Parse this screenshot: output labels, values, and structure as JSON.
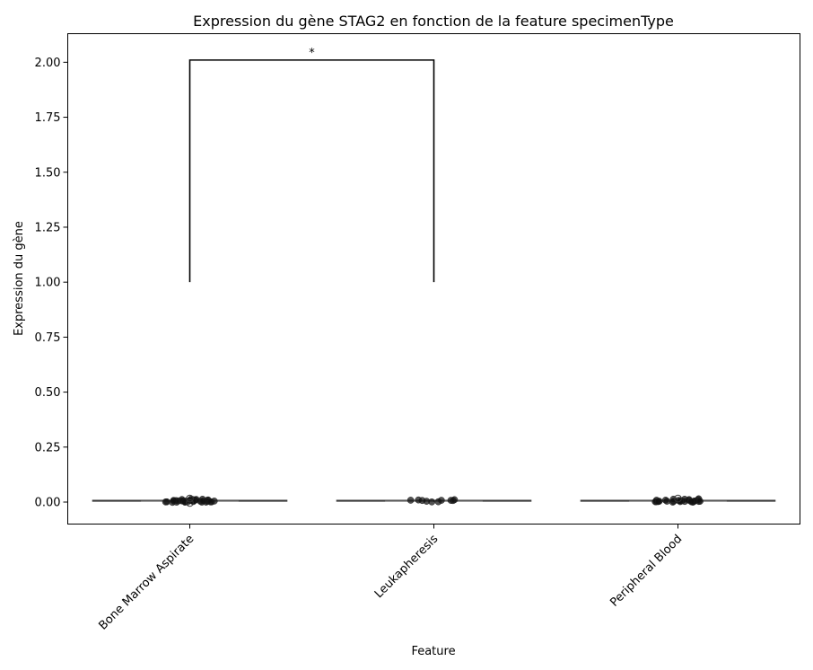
{
  "chart_data": {
    "type": "box",
    "title": "Expression du gène STAG2 en fonction de la feature specimenType",
    "xlabel": "Feature",
    "ylabel": "Expression du gène",
    "categories": [
      "Bone Marrow Aspirate",
      "Leukapheresis",
      "Peripheral Blood"
    ],
    "ylim": [
      -0.1,
      2.13
    ],
    "yticks": [
      0.0,
      0.25,
      0.5,
      0.75,
      1.0,
      1.25,
      1.5,
      1.75,
      2.0
    ],
    "ytick_labels": [
      "0.00",
      "0.25",
      "0.50",
      "0.75",
      "1.00",
      "1.25",
      "1.50",
      "1.75",
      "2.00"
    ],
    "grid": false,
    "boxes": [
      {
        "category": "Bone Marrow Aspirate",
        "whisker_low": 0.0,
        "q1": 0.004,
        "median": 0.006,
        "q3": 0.008,
        "whisker_high": 0.012
      },
      {
        "category": "Leukapheresis",
        "whisker_low": 0.001,
        "q1": 0.004,
        "median": 0.006,
        "q3": 0.008,
        "whisker_high": 0.01
      },
      {
        "category": "Peripheral Blood",
        "whisker_low": 0.0,
        "q1": 0.004,
        "median": 0.006,
        "q3": 0.008,
        "whisker_high": 0.012
      }
    ],
    "points": [
      {
        "category": "Bone Marrow Aspirate",
        "values": [
          0.006,
          0.004,
          0.008,
          0.005,
          0.007,
          0.003,
          0.009,
          0.006,
          0.002,
          0.01,
          0.005,
          0.007,
          0.004,
          0.006,
          0.008,
          0.003,
          0.006,
          0.005,
          0.007,
          0.004,
          0.009,
          0.006,
          0.005,
          0.007,
          0.003,
          0.008,
          0.006,
          0.004,
          0.005,
          0.007,
          0.006,
          0.002,
          0.008,
          0.005,
          0.004
        ],
        "outliers": [
          0.016,
          -0.004
        ]
      },
      {
        "category": "Leukapheresis",
        "values": [
          0.009,
          0.005,
          0.004,
          0.006,
          0.01,
          0.007,
          0.003,
          0.008,
          0.006,
          0.005
        ],
        "outliers": []
      },
      {
        "category": "Peripheral Blood",
        "values": [
          0.006,
          0.004,
          0.008,
          0.005,
          0.007,
          0.003,
          0.009,
          0.006,
          0.01,
          0.005,
          0.007,
          0.004,
          0.006,
          0.008,
          0.003,
          0.006,
          0.005,
          0.007,
          0.004,
          0.009,
          0.006,
          0.005,
          0.007,
          0.008,
          0.006,
          0.004,
          0.005,
          0.007
        ],
        "outliers": [
          0.016
        ]
      }
    ],
    "annotations": [
      {
        "type": "significance-bracket",
        "from": "Bone Marrow Aspirate",
        "to": "Leukapheresis",
        "y_bottom": 1.0,
        "y_top": 2.01,
        "label": "*"
      }
    ]
  }
}
